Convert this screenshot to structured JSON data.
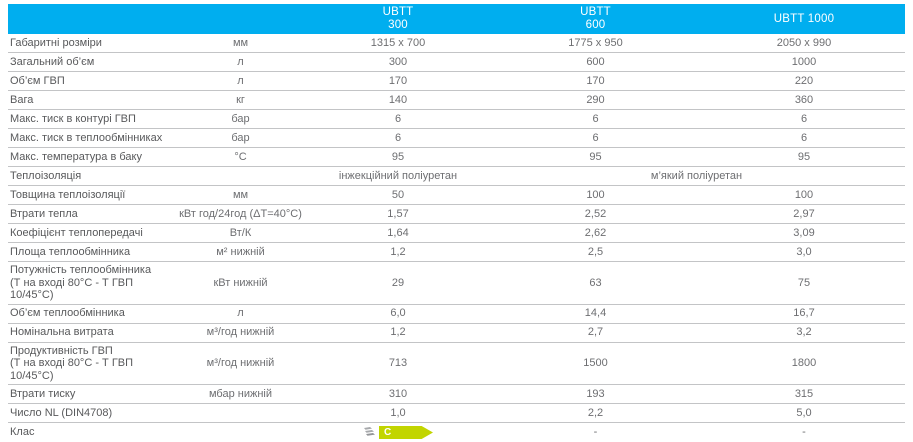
{
  "accent_color": "#00AEEF",
  "badge": {
    "class_letter": "C",
    "badge_color": "#C2D500"
  },
  "header": {
    "products": [
      {
        "line1": "UBTT",
        "line2": "300"
      },
      {
        "line1": "UBTT",
        "line2": "600"
      },
      {
        "line1": "UBTT 1000",
        "line2": ""
      }
    ]
  },
  "rows": [
    {
      "label": "Габаритні розміри",
      "unit": "мм",
      "values": [
        "1315 x 700",
        "1775 x 950",
        "2050 x 990"
      ]
    },
    {
      "label": "Загальний об’єм",
      "unit": "л",
      "values": [
        "300",
        "600",
        "1000"
      ]
    },
    {
      "label": "Об’єм ГВП",
      "unit": "л",
      "values": [
        "170",
        "170",
        "220"
      ]
    },
    {
      "label": "Вага",
      "unit": "кг",
      "values": [
        "140",
        "290",
        "360"
      ]
    },
    {
      "label": "Макс. тиск в контурі ГВП",
      "unit": "бар",
      "values": [
        "6",
        "6",
        "6"
      ]
    },
    {
      "label": "Макс. тиск в теплообмінниках",
      "unit": "бар",
      "values": [
        "6",
        "6",
        "6"
      ]
    },
    {
      "label": "Макс. температура в баку",
      "unit": "°С",
      "values": [
        "95",
        "95",
        "95"
      ]
    },
    {
      "label": "Теплоізоляція",
      "unit": "",
      "type": "insulation",
      "values": [
        "інжекційний поліуретан",
        "м’який поліуретан"
      ]
    },
    {
      "label": "Товщина теплоізоляції",
      "unit": "мм",
      "values": [
        "50",
        "100",
        "100"
      ]
    },
    {
      "label": "Втрати тепла",
      "unit": "кВт год/24год (ΔТ=40°С)",
      "values": [
        "1,57",
        "2,52",
        "2,97"
      ]
    },
    {
      "label": "Коефіцієнт теплопередачі",
      "unit": "Вт/К",
      "values": [
        "1,64",
        "2,62",
        "3,09"
      ]
    },
    {
      "label": "Площа теплообмінника",
      "unit": "м² нижній",
      "values": [
        "1,2",
        "2,5",
        "3,0"
      ]
    },
    {
      "label": "Потужність теплообмінника",
      "label2": "(Т на вході 80°С - Т ГВП 10/45°С)",
      "unit": "кВт нижній",
      "values": [
        "29",
        "63",
        "75"
      ]
    },
    {
      "label": "Об’єм теплообмінника",
      "unit": "л",
      "values": [
        "6,0",
        "14,4",
        "16,7"
      ]
    },
    {
      "label": "Номінальна витрата",
      "unit": "м³/год нижній",
      "values": [
        "1,2",
        "2,7",
        "3,2"
      ]
    },
    {
      "label": "Продуктивність ГВП",
      "label2": "(Т на вході 80°С - Т ГВП 10/45°С)",
      "unit": "м³/год нижній",
      "values": [
        "713",
        "1500",
        "1800"
      ]
    },
    {
      "label": "Втрати тиску",
      "unit": "мбар нижній",
      "values": [
        "310",
        "193",
        "315"
      ]
    },
    {
      "label": "Число NL (DIN4708)",
      "unit": "",
      "values": [
        "1,0",
        "2,2",
        "5,0"
      ]
    },
    {
      "label": "Клас",
      "unit": "",
      "type": "class",
      "values": [
        "C",
        "-",
        "-"
      ]
    }
  ]
}
